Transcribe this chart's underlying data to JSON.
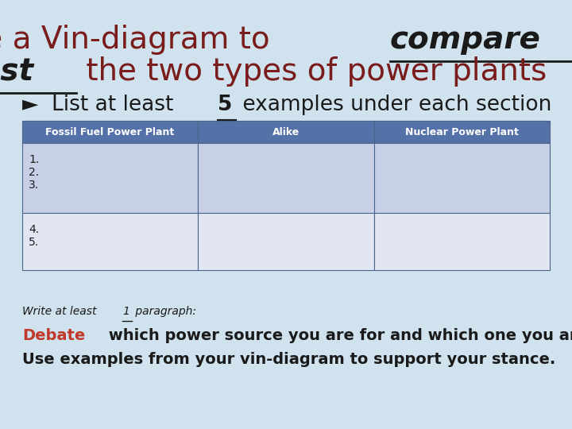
{
  "background_color": "#cfe2ed",
  "title_color_normal": "#7b1c1c",
  "title_color_bold": "#1a1a1a",
  "title_fontsize": 28,
  "subtitle_fontsize": 19,
  "table_header_bg": "#5572a8",
  "table_header_text_color": "#ffffff",
  "table_row1_bg": "#c8d0e8",
  "table_row2_bg": "#e2e6f3",
  "table_border_color": "#4a648a",
  "col1_header": "Fossil Fuel Power Plant",
  "col2_header": "Alike",
  "col3_header": "Nuclear Power Plant",
  "row1_col1_lines": [
    "1.",
    "2.",
    "3."
  ],
  "row2_col1_lines": [
    "4.",
    "5."
  ],
  "footer_debate_color": "#c0392b",
  "footer_debate_word": "Debate",
  "footer_line2": " which power source you are for and which one you are against.",
  "footer_line3": "Use examples from your vin-diagram to support your stance.",
  "footer_fontsize": 14,
  "footer_italic_fontsize": 10,
  "footer_color": "#1a1a1a",
  "table_text_fontsize": 10,
  "table_header_fontsize": 9
}
